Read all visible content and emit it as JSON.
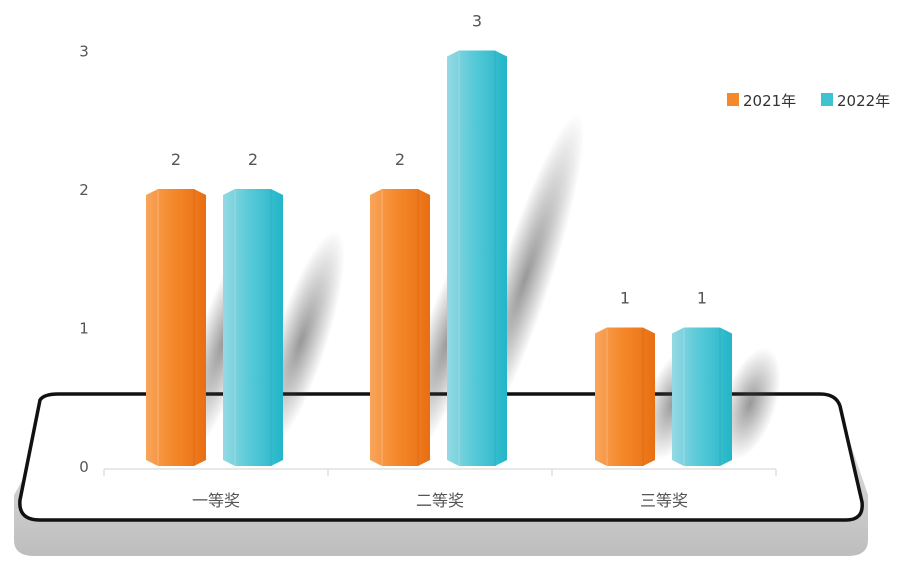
{
  "chart_data": {
    "type": "bar",
    "categories": [
      "一等奖",
      "二等奖",
      "三等奖"
    ],
    "series": [
      {
        "name": "2021年",
        "values": [
          2,
          2,
          1
        ],
        "color": "#f5882a"
      },
      {
        "name": "2022年",
        "values": [
          2,
          3,
          1
        ],
        "color": "#3fc3d2"
      }
    ],
    "yticks": [
      0,
      1,
      2,
      3
    ],
    "ylim": [
      0,
      3
    ],
    "legend_position": "top-right",
    "data_labels": true,
    "grid": false,
    "style": "3d-cylinder-on-platform"
  }
}
